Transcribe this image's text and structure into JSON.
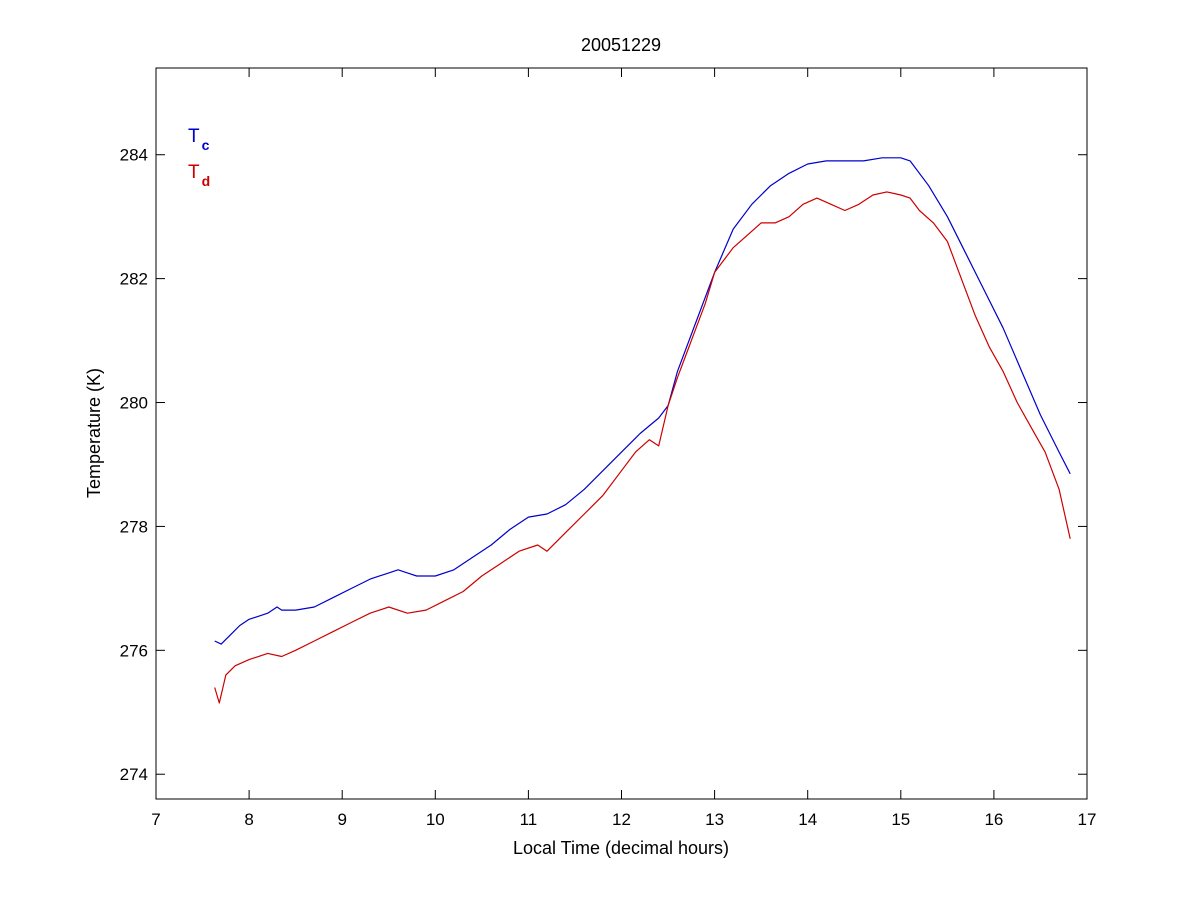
{
  "chart_data": {
    "type": "line",
    "title": "20051229",
    "xlabel": "Local Time (decimal hours)",
    "ylabel": "Temperature (K)",
    "xlim": [
      7,
      17
    ],
    "ylim": [
      273.6,
      285.4
    ],
    "xticks": [
      7,
      8,
      9,
      10,
      11,
      12,
      13,
      14,
      15,
      16,
      17
    ],
    "yticks": [
      274,
      276,
      278,
      280,
      282,
      284
    ],
    "grid": false,
    "legend_position": "top-left",
    "series": [
      {
        "name": "Tc",
        "label_main": "T",
        "label_sub": "c",
        "color": "#0000cc",
        "points": [
          [
            7.63,
            276.15
          ],
          [
            7.7,
            276.1
          ],
          [
            7.8,
            276.25
          ],
          [
            7.9,
            276.4
          ],
          [
            8.0,
            276.5
          ],
          [
            8.1,
            276.55
          ],
          [
            8.2,
            276.6
          ],
          [
            8.3,
            276.7
          ],
          [
            8.35,
            276.65
          ],
          [
            8.5,
            276.65
          ],
          [
            8.7,
            276.7
          ],
          [
            8.9,
            276.85
          ],
          [
            9.1,
            277.0
          ],
          [
            9.3,
            277.15
          ],
          [
            9.5,
            277.25
          ],
          [
            9.6,
            277.3
          ],
          [
            9.7,
            277.25
          ],
          [
            9.8,
            277.2
          ],
          [
            10.0,
            277.2
          ],
          [
            10.2,
            277.3
          ],
          [
            10.4,
            277.5
          ],
          [
            10.6,
            277.7
          ],
          [
            10.8,
            277.95
          ],
          [
            11.0,
            278.15
          ],
          [
            11.2,
            278.2
          ],
          [
            11.4,
            278.35
          ],
          [
            11.6,
            278.6
          ],
          [
            11.8,
            278.9
          ],
          [
            12.0,
            279.2
          ],
          [
            12.2,
            279.5
          ],
          [
            12.4,
            279.75
          ],
          [
            12.5,
            279.95
          ],
          [
            12.6,
            280.5
          ],
          [
            12.8,
            281.3
          ],
          [
            13.0,
            282.1
          ],
          [
            13.2,
            282.8
          ],
          [
            13.4,
            283.2
          ],
          [
            13.6,
            283.5
          ],
          [
            13.8,
            283.7
          ],
          [
            14.0,
            283.85
          ],
          [
            14.2,
            283.9
          ],
          [
            14.4,
            283.9
          ],
          [
            14.6,
            283.9
          ],
          [
            14.8,
            283.95
          ],
          [
            15.0,
            283.95
          ],
          [
            15.1,
            283.9
          ],
          [
            15.3,
            283.5
          ],
          [
            15.5,
            283.0
          ],
          [
            15.7,
            282.4
          ],
          [
            15.9,
            281.8
          ],
          [
            16.1,
            281.2
          ],
          [
            16.3,
            280.5
          ],
          [
            16.5,
            279.8
          ],
          [
            16.7,
            279.2
          ],
          [
            16.82,
            278.85
          ]
        ]
      },
      {
        "name": "Td",
        "label_main": "T",
        "label_sub": "d",
        "color": "#cc0000",
        "points": [
          [
            7.63,
            275.4
          ],
          [
            7.68,
            275.15
          ],
          [
            7.75,
            275.6
          ],
          [
            7.85,
            275.75
          ],
          [
            8.0,
            275.85
          ],
          [
            8.2,
            275.95
          ],
          [
            8.35,
            275.9
          ],
          [
            8.5,
            276.0
          ],
          [
            8.7,
            276.15
          ],
          [
            8.9,
            276.3
          ],
          [
            9.1,
            276.45
          ],
          [
            9.3,
            276.6
          ],
          [
            9.5,
            276.7
          ],
          [
            9.7,
            276.6
          ],
          [
            9.9,
            276.65
          ],
          [
            10.1,
            276.8
          ],
          [
            10.3,
            276.95
          ],
          [
            10.5,
            277.2
          ],
          [
            10.7,
            277.4
          ],
          [
            10.9,
            277.6
          ],
          [
            11.1,
            277.7
          ],
          [
            11.2,
            277.6
          ],
          [
            11.4,
            277.9
          ],
          [
            11.6,
            278.2
          ],
          [
            11.8,
            278.5
          ],
          [
            12.0,
            278.9
          ],
          [
            12.15,
            279.2
          ],
          [
            12.3,
            279.4
          ],
          [
            12.4,
            279.3
          ],
          [
            12.5,
            279.95
          ],
          [
            12.6,
            280.4
          ],
          [
            12.7,
            280.8
          ],
          [
            12.8,
            281.2
          ],
          [
            12.9,
            281.6
          ],
          [
            13.0,
            282.1
          ],
          [
            13.1,
            282.3
          ],
          [
            13.2,
            282.5
          ],
          [
            13.35,
            282.7
          ],
          [
            13.5,
            282.9
          ],
          [
            13.65,
            282.9
          ],
          [
            13.8,
            283.0
          ],
          [
            13.95,
            283.2
          ],
          [
            14.1,
            283.3
          ],
          [
            14.25,
            283.2
          ],
          [
            14.4,
            283.1
          ],
          [
            14.55,
            283.2
          ],
          [
            14.7,
            283.35
          ],
          [
            14.85,
            283.4
          ],
          [
            15.0,
            283.35
          ],
          [
            15.1,
            283.3
          ],
          [
            15.2,
            283.1
          ],
          [
            15.35,
            282.9
          ],
          [
            15.5,
            282.6
          ],
          [
            15.65,
            282.0
          ],
          [
            15.8,
            281.4
          ],
          [
            15.95,
            280.9
          ],
          [
            16.1,
            280.5
          ],
          [
            16.25,
            280.0
          ],
          [
            16.4,
            279.6
          ],
          [
            16.55,
            279.2
          ],
          [
            16.7,
            278.6
          ],
          [
            16.82,
            277.8
          ]
        ]
      }
    ]
  }
}
